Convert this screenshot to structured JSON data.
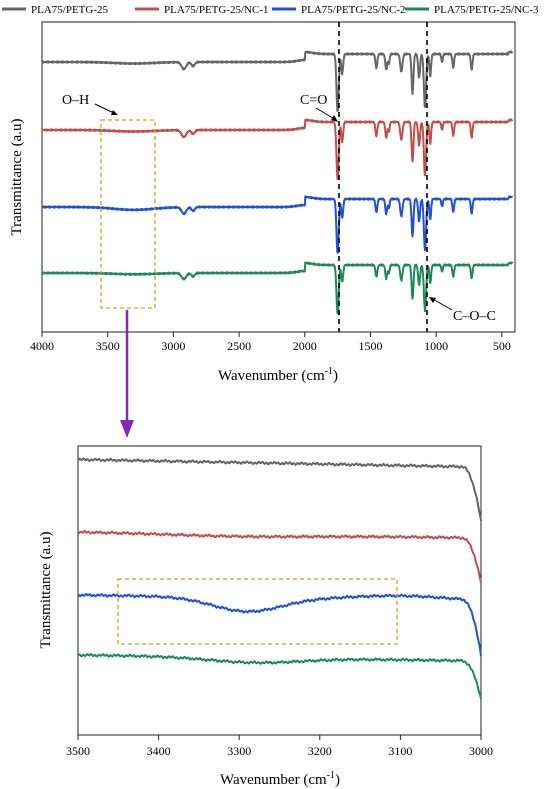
{
  "chart_data": [
    {
      "type": "line",
      "panel": "full-spectrum",
      "xlabel": "Wavenumber (cm",
      "xlabel_sup": "-1",
      "xlabel_end": ")",
      "ylabel": "Transmittance (a.u)",
      "xlim": [
        4000,
        400
      ],
      "x_reversed": true,
      "xticks": [
        4000,
        3500,
        3000,
        2500,
        2000,
        1500,
        1000,
        500
      ],
      "legend_position": "top",
      "series": [
        {
          "name": "PLA75/PETG-25",
          "color": "#666666"
        },
        {
          "name": "PLA75/PETG-25/NC-1",
          "color": "#c0504d"
        },
        {
          "name": "PLA75/PETG-25/NC-2",
          "color": "#2151d6"
        },
        {
          "name": "PLA75/PETG-25/NC-3",
          "color": "#1e8a5a"
        }
      ],
      "annotations": [
        {
          "text": "C=O",
          "x": 1750
        },
        {
          "text": "C–O–C",
          "x": 1085
        },
        {
          "text": "O–H",
          "x_range": [
            3550,
            3150
          ]
        }
      ]
    },
    {
      "type": "line",
      "panel": "zoom",
      "xlabel": "Wavenumber (cm",
      "xlabel_sup": "-1",
      "xlabel_end": ")",
      "ylabel": "Transmittance (a.u)",
      "xlim": [
        3500,
        3000
      ],
      "x_reversed": true,
      "xticks": [
        3500,
        3400,
        3300,
        3200,
        3100,
        3000
      ],
      "highlight_box_x": [
        3450,
        3105
      ]
    }
  ]
}
